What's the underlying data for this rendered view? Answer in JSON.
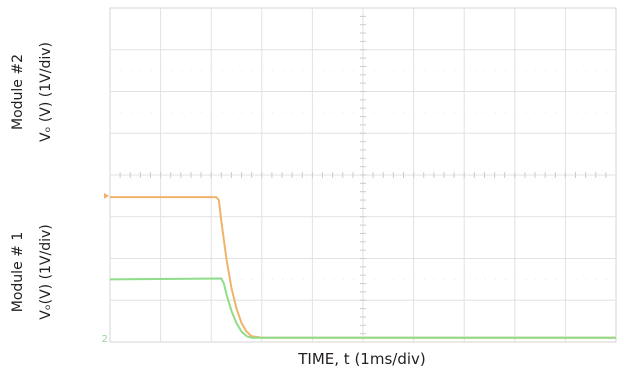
{
  "chart_data": {
    "type": "line",
    "xlabel": "TIME, t (1ms/div)",
    "x_divisions": 10,
    "y_divisions": 8,
    "grid": true,
    "channels": [
      {
        "label_top": "Module #2",
        "label_bottom": "Vₒ (V) (1V/div)",
        "color": "#f0b36a",
        "ground_marker_color": "#f0b36a",
        "ground_div": 3.5
      },
      {
        "label_top": "Module # 1",
        "label_bottom": "Vₒ(V) (1V/div)",
        "color": "#8fdc8a",
        "ground_marker_color": "#9bd69a",
        "ground_div": 0.1,
        "ground_marker_text": "2"
      }
    ],
    "series": [
      {
        "color": "#f0b36a",
        "x": [
          0,
          2.1,
          2.15,
          2.2,
          2.3,
          2.4,
          2.5,
          2.6,
          2.7,
          2.8,
          3.0,
          4.0,
          6.0,
          8.0,
          10.0
        ],
        "y": [
          3.47,
          3.47,
          3.4,
          2.9,
          2.0,
          1.3,
          0.8,
          0.45,
          0.25,
          0.14,
          0.1,
          0.1,
          0.1,
          0.1,
          0.1
        ]
      },
      {
        "color": "#8fdc8a",
        "x": [
          0,
          2.2,
          2.25,
          2.3,
          2.4,
          2.5,
          2.6,
          2.7,
          2.8,
          3.0,
          4.0,
          6.0,
          8.0,
          10.0
        ],
        "y": [
          1.5,
          1.52,
          1.4,
          1.15,
          0.75,
          0.45,
          0.25,
          0.14,
          0.1,
          0.1,
          0.1,
          0.1,
          0.1,
          0.1
        ]
      }
    ]
  }
}
